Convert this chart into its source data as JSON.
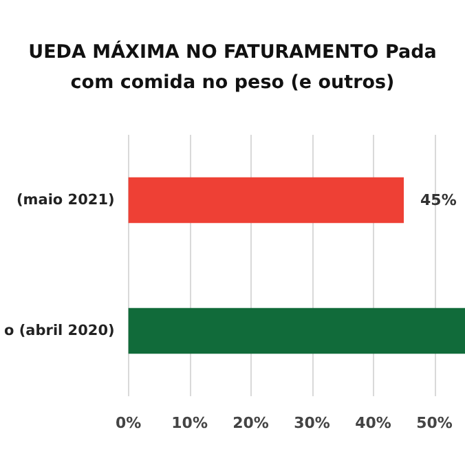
{
  "chart_data": {
    "type": "bar",
    "orientation": "horizontal",
    "title": "UEDA MÁXIMA NO FATURAMENTO Pada\ncom comida no peso (e outros)",
    "categories": [
      "(maio 2021)",
      "o (abril 2020)"
    ],
    "values": [
      45,
      55
    ],
    "colors": [
      "#ee4035",
      "#116b3a"
    ],
    "value_labels": [
      "45%",
      null
    ],
    "xlim": [
      0,
      55
    ],
    "xticks": [
      {
        "value": 0,
        "label": "0%"
      },
      {
        "value": 10,
        "label": "10%"
      },
      {
        "value": 20,
        "label": "20%"
      },
      {
        "value": 30,
        "label": "30%"
      },
      {
        "value": 40,
        "label": "40%"
      },
      {
        "value": 50,
        "label": "50%"
      }
    ],
    "grid": "x"
  }
}
